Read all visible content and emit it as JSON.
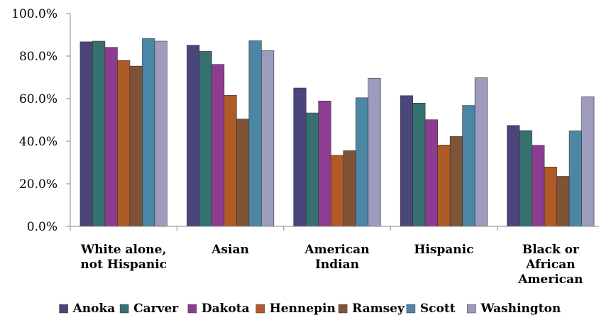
{
  "chart_data": {
    "type": "bar",
    "title": "",
    "xlabel": "",
    "ylabel": "",
    "ylim": [
      0,
      100
    ],
    "y_ticks": [
      "0.0%",
      "20.0%",
      "40.0%",
      "60.0%",
      "80.0%",
      "100.0%"
    ],
    "y_tick_values": [
      0,
      20,
      40,
      60,
      80,
      100
    ],
    "grid": false,
    "legend_position": "bottom",
    "categories": [
      [
        "White alone,",
        "not Hispanic"
      ],
      [
        "Asian"
      ],
      [
        "American",
        "Indian"
      ],
      [
        "Hispanic"
      ],
      [
        "Black or",
        "African",
        "American"
      ]
    ],
    "series": [
      {
        "name": "Anoka",
        "color": "#4a457a",
        "values": [
          86.7,
          85.1,
          65.0,
          61.4,
          47.4
        ]
      },
      {
        "name": "Carver",
        "color": "#37716f",
        "values": [
          87.0,
          82.2,
          53.3,
          57.9,
          45.0
        ]
      },
      {
        "name": "Dakota",
        "color": "#8e3c91",
        "values": [
          84.1,
          76.1,
          58.9,
          50.1,
          38.1
        ]
      },
      {
        "name": "Hennepin",
        "color": "#b05a27",
        "values": [
          77.9,
          61.6,
          33.4,
          38.2,
          27.9
        ]
      },
      {
        "name": "Ramsey",
        "color": "#7f5335",
        "values": [
          75.3,
          50.4,
          35.6,
          42.2,
          23.5
        ]
      },
      {
        "name": "Scott",
        "color": "#4b86a5",
        "values": [
          88.2,
          87.2,
          60.4,
          56.8,
          44.9
        ]
      },
      {
        "name": "Washington",
        "color": "#9d9cbc",
        "values": [
          87.0,
          82.6,
          69.6,
          69.8,
          60.9
        ]
      }
    ]
  }
}
